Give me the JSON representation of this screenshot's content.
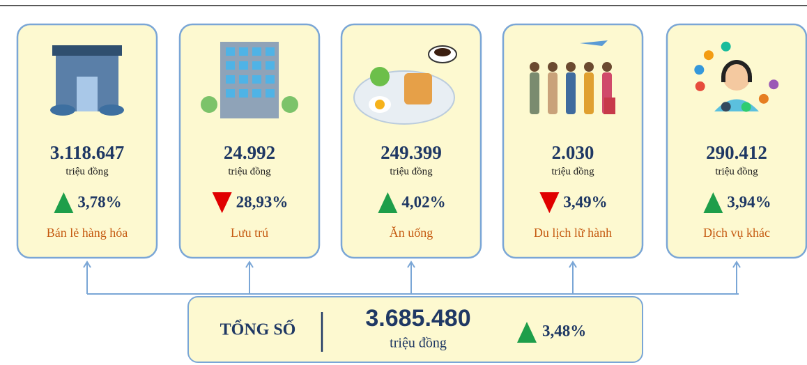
{
  "cards": [
    {
      "value": "3.118.647",
      "unit": "triệu đồng",
      "change": "3,78%",
      "direction": "up",
      "label": "Bán lẻ hàng hóa"
    },
    {
      "value": "24.992",
      "unit": "triệu đồng",
      "change": "28,93%",
      "direction": "down",
      "label": "Lưu trú"
    },
    {
      "value": "249.399",
      "unit": "triệu đồng",
      "change": "4,02%",
      "direction": "up",
      "label": "Ăn uống"
    },
    {
      "value": "2.030",
      "unit": "triệu đồng",
      "change": "3,49%",
      "direction": "down",
      "label": "Du lịch lữ hành"
    },
    {
      "value": "290.412",
      "unit": "triệu đồng",
      "change": "3,94%",
      "direction": "up",
      "label": "Dịch vụ khác"
    }
  ],
  "total": {
    "label": "TỔNG SỐ",
    "value": "3.685.480",
    "unit": "triệu đồng",
    "change": "3,48%",
    "direction": "up"
  }
}
